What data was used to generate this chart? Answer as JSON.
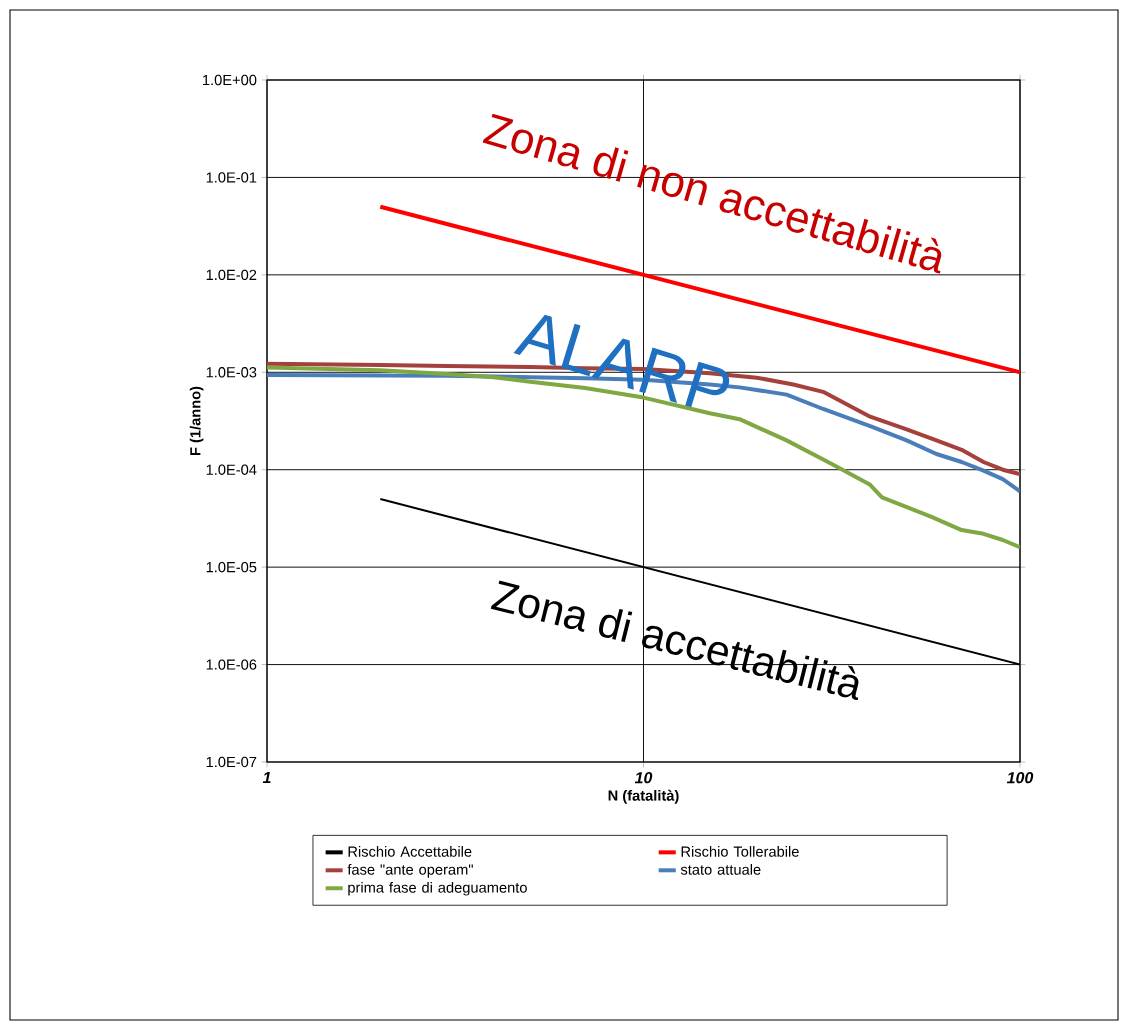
{
  "chart_data": {
    "type": "line",
    "xlabel": "N (fatalità)",
    "ylabel": "F (1/anno)",
    "annotations": [
      "Zona di non accettabilità",
      "ALARP",
      "Zona di accettabilità"
    ],
    "log": "xy",
    "grid": true,
    "legend": "bottom",
    "xlim": [
      1,
      100
    ],
    "ylim": [
      1e-07,
      1
    ],
    "xticks": [
      1,
      10,
      100
    ],
    "yticks": [
      {
        "value": 1,
        "label": "1.0E+00"
      },
      {
        "value": 0.1,
        "label": "1.0E-01"
      },
      {
        "value": 0.01,
        "label": "1.0E-02"
      },
      {
        "value": 0.001,
        "label": "1.0E-03"
      },
      {
        "value": 0.0001,
        "label": "1.0E-04"
      },
      {
        "value": 1e-05,
        "label": "1.0E-05"
      },
      {
        "value": 1e-06,
        "label": "1.0E-06"
      },
      {
        "value": 1e-07,
        "label": "1.0E-07"
      }
    ],
    "series": [
      {
        "name": "Rischio Accettabile",
        "color": "#000000",
        "x": [
          2,
          100
        ],
        "values": [
          5e-05,
          1e-06
        ]
      },
      {
        "name": "Rischio Tollerabile",
        "color": "#ff0000",
        "x": [
          2,
          100
        ],
        "values": [
          0.05,
          0.001
        ]
      },
      {
        "name": "fase \"ante operam\"",
        "color": "#a5413d",
        "x": [
          1,
          2,
          3,
          5,
          7,
          10,
          15,
          20,
          25,
          30,
          40,
          50,
          60,
          70,
          80,
          90,
          100
        ],
        "values": [
          0.00122,
          0.00119,
          0.00116,
          0.00113,
          0.0011,
          0.00108,
          0.00098,
          0.00088,
          0.00075,
          0.00063,
          0.00035,
          0.00026,
          0.0002,
          0.00016,
          0.00012,
          0.0001,
          9e-05
        ]
      },
      {
        "name": "stato attuale",
        "color": "#4a7ebb",
        "x": [
          1,
          3,
          5,
          7,
          10,
          15,
          18,
          24,
          30,
          40,
          50,
          60,
          70,
          80,
          90,
          100
        ],
        "values": [
          0.00094,
          0.00092,
          0.00089,
          0.00087,
          0.00084,
          0.00075,
          0.0007,
          0.00059,
          0.00042,
          0.00028,
          0.0002,
          0.000145,
          0.00012,
          9.8e-05,
          8e-05,
          6e-05
        ]
      },
      {
        "name": "prima fase di adeguamento",
        "color": "#7fa843",
        "x": [
          1,
          2,
          3,
          4,
          5,
          7,
          10,
          15,
          18,
          24,
          32,
          40,
          43,
          58,
          70,
          80,
          90,
          100
        ],
        "values": [
          0.00112,
          0.00105,
          0.00096,
          0.00089,
          0.0008,
          0.00069,
          0.00055,
          0.00038,
          0.00033,
          0.0002,
          0.000112,
          7e-05,
          5.2e-05,
          3.3e-05,
          2.4e-05,
          2.2e-05,
          1.9e-05,
          1.6e-05
        ]
      }
    ]
  }
}
